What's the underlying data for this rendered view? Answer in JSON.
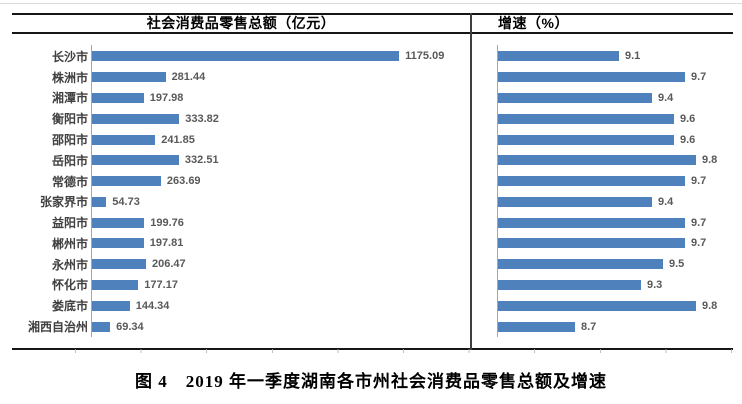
{
  "figure": {
    "caption": "图 4　2019 年一季度湖南各市州社会消费品零售总额及增速"
  },
  "colors": {
    "bar": "#4f81bd",
    "axis": "#a6a6a6",
    "value_label": "#595959",
    "category_label": "#404040",
    "border": "#161616"
  },
  "chart_data": [
    {
      "type": "bar",
      "orientation": "horizontal",
      "title": "社会消费品零售总额（亿元）",
      "categories": [
        "长沙市",
        "株洲市",
        "湘潭市",
        "衡阳市",
        "邵阳市",
        "岳阳市",
        "常德市",
        "张家界市",
        "益阳市",
        "郴州市",
        "永州市",
        "怀化市",
        "娄底市",
        "湘西自治州"
      ],
      "values": [
        1175.09,
        281.44,
        197.98,
        333.82,
        241.85,
        332.51,
        263.69,
        54.73,
        199.76,
        197.81,
        206.47,
        177.17,
        144.34,
        69.34
      ],
      "labels": [
        "1175.09",
        "281.44",
        "197.98",
        "333.82",
        "241.85",
        "332.51",
        "263.69",
        "54.73",
        "199.76",
        "197.81",
        "206.47",
        "177.17",
        "144.34",
        "69.34"
      ],
      "xlim": [
        0,
        1400
      ],
      "grid": false,
      "data_labels": true,
      "legend": "none"
    },
    {
      "type": "bar",
      "orientation": "horizontal",
      "title": "增速（%）",
      "categories": [
        "长沙市",
        "株洲市",
        "湘潭市",
        "衡阳市",
        "邵阳市",
        "岳阳市",
        "常德市",
        "张家界市",
        "益阳市",
        "郴州市",
        "永州市",
        "怀化市",
        "娄底市",
        "湘西自治州"
      ],
      "values": [
        9.1,
        9.7,
        9.4,
        9.6,
        9.6,
        9.8,
        9.7,
        9.4,
        9.7,
        9.7,
        9.5,
        9.3,
        9.8,
        8.7
      ],
      "labels": [
        "9.1",
        "9.7",
        "9.4",
        "9.6",
        "9.6",
        "9.8",
        "9.7",
        "9.4",
        "9.7",
        "9.7",
        "9.5",
        "9.3",
        "9.8",
        "8.7"
      ],
      "xlim": [
        8.0,
        10.2
      ],
      "grid": false,
      "data_labels": true,
      "legend": "none"
    }
  ]
}
